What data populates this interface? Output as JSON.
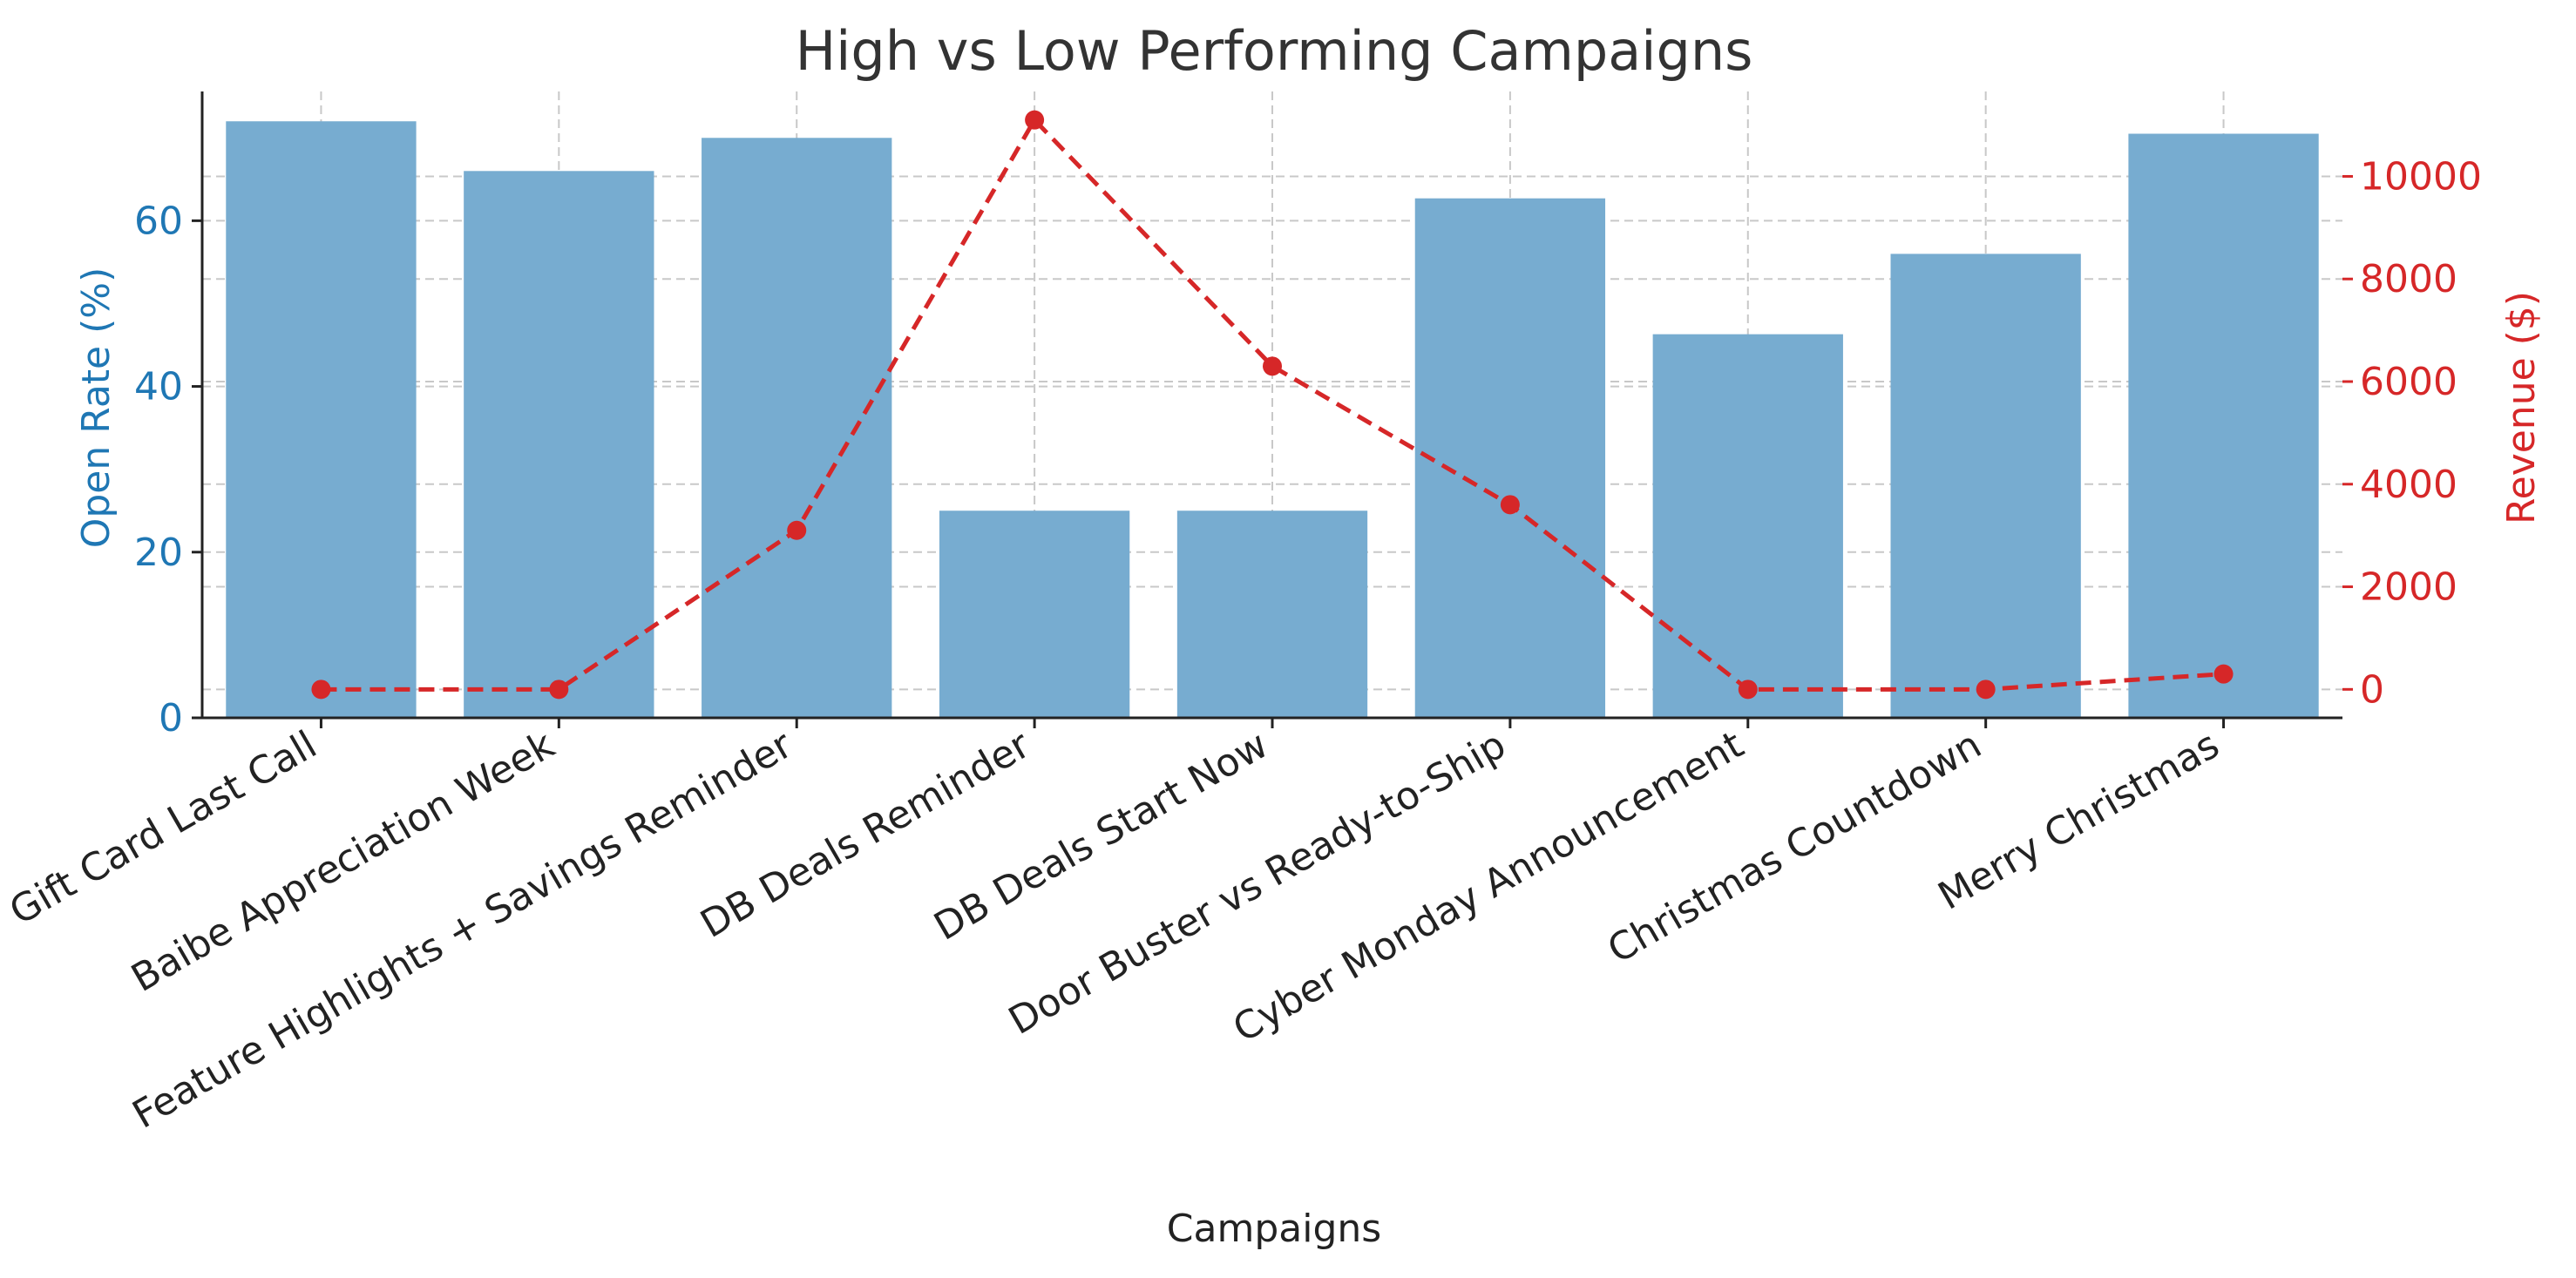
{
  "chart_data": {
    "type": "bar",
    "title": "High vs Low Performing Campaigns",
    "xlabel": "Campaigns",
    "categories": [
      "Gift Card Last Call",
      "Baibe Appreciation Week",
      "Feature Highlights + Savings Reminder",
      "DB Deals Reminder",
      "DB Deals Start Now",
      "Door Buster vs Ready-to-Ship",
      "Cyber Monday Announcement",
      "Christmas Countdown",
      "Merry Christmas"
    ],
    "series": [
      {
        "name": "Open Rate (%)",
        "type": "bar",
        "axis": "left",
        "color": "#77acd0",
        "values": [
          72.0,
          66.0,
          70.0,
          25.0,
          25.0,
          62.7,
          46.3,
          56.0,
          70.5
        ]
      },
      {
        "name": "Revenue ($)",
        "type": "line",
        "axis": "right",
        "color": "#d62728",
        "style": "dashed",
        "marker": "circle",
        "values": [
          0,
          0,
          3100,
          11100,
          6300,
          3600,
          0,
          0,
          300
        ]
      }
    ],
    "y_left": {
      "label": "Open Rate (%)",
      "ticks": [
        0,
        20,
        40,
        60
      ],
      "ylim": [
        0,
        75.6
      ],
      "color": "#1f77b4"
    },
    "y_right": {
      "label": "Revenue ($)",
      "ticks": [
        0,
        2000,
        4000,
        6000,
        8000,
        10000
      ],
      "ylim": [
        -555,
        11655
      ],
      "color": "#d62728"
    },
    "grid": true,
    "legend": "none"
  }
}
